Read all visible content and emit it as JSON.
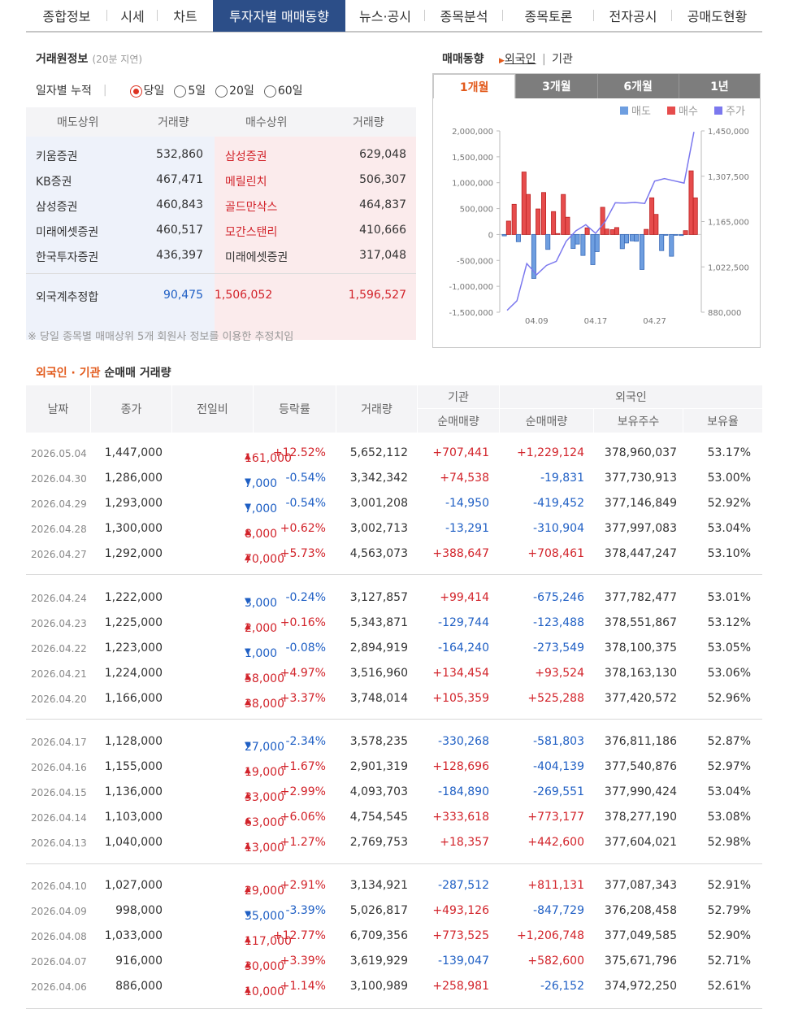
{
  "nav_tabs": [
    "종합정보",
    "시세",
    "차트",
    "투자자별 매매동향",
    "뉴스·공시",
    "종목분석",
    "종목토론",
    "전자공시",
    "공매도현황"
  ],
  "broker": {
    "title": "거래원정보",
    "subtitle": "(20분 지연)",
    "period_label": "일자별 누적",
    "periods": [
      "당일",
      "5일",
      "20일",
      "60일"
    ],
    "headers": [
      "매도상위",
      "거래량",
      "매수상위",
      "거래량"
    ],
    "rows": [
      {
        "sell": "키움증권",
        "sell_vol": "532,860",
        "buy": "삼성증권",
        "buy_vol": "629,048"
      },
      {
        "sell": "KB증권",
        "sell_vol": "467,471",
        "buy": "메릴린치",
        "buy_vol": "506,307"
      },
      {
        "sell": "삼성증권",
        "sell_vol": "460,843",
        "buy": "골드만삭스",
        "buy_vol": "464,837"
      },
      {
        "sell": "미래에셋증권",
        "sell_vol": "460,517",
        "buy": "모간스탠리",
        "buy_vol": "410,666"
      },
      {
        "sell": "한국투자증권",
        "sell_vol": "436,397",
        "buy": "미래에셋증권",
        "buy_vol": "317,048"
      }
    ],
    "foreign_label": "외국계추정합",
    "foreign_sell": "90,475",
    "foreign_mid": "1,506,052",
    "foreign_buy": "1,596,527",
    "note": "※ 당일 종목별 매매상위 5개 회원사 정보를 이용한 추정치임"
  },
  "trend": {
    "title": "매매동향",
    "opt_foreign": "외국인",
    "opt_sep": "|",
    "opt_inst": "기관",
    "periods": [
      "1개월",
      "3개월",
      "6개월",
      "1년"
    ],
    "legend": [
      "매도",
      "매수",
      "주가"
    ]
  },
  "chart_data": {
    "type": "bar",
    "left_ticks": [
      "2,000,000",
      "1,500,000",
      "1,000,000",
      "500,000",
      "0",
      "-500,000",
      "-1,000,000",
      "-1,500,000"
    ],
    "right_ticks": [
      "1,450,000",
      "1,307,500",
      "1,165,000",
      "1,022,500",
      "880,000"
    ],
    "x_ticks": [
      "04.09",
      "04.17",
      "04.27"
    ],
    "ylim": [
      -1500000,
      2000000
    ],
    "price_lim": [
      880000,
      1450000
    ],
    "days": [
      "04.06",
      "04.07",
      "04.08",
      "04.09",
      "04.10",
      "04.13",
      "04.14",
      "04.15",
      "04.16",
      "04.17",
      "04.20",
      "04.21",
      "04.22",
      "04.23",
      "04.24",
      "04.27",
      "04.28",
      "04.29",
      "04.30",
      "05.04"
    ],
    "foreign": [
      -26152,
      582600,
      1206748,
      -847729,
      811131,
      442600,
      773177,
      -269551,
      -404139,
      -581803,
      525288,
      93524,
      -273549,
      -123488,
      -675246,
      708461,
      -310904,
      -419452,
      -19831,
      1229124
    ],
    "inst": [
      258981,
      -139047,
      773525,
      493126,
      -287512,
      18357,
      333618,
      -184890,
      128696,
      -330268,
      105359,
      134454,
      -164240,
      -129744,
      99414,
      388647,
      -13291,
      -14950,
      74538,
      707441
    ],
    "price": [
      886000,
      916000,
      1033000,
      998000,
      1027000,
      1040000,
      1103000,
      1136000,
      1155000,
      1128000,
      1166000,
      1224000,
      1223000,
      1225000,
      1222000,
      1292000,
      1300000,
      1293000,
      1286000,
      1447000
    ],
    "colors": {
      "sell": "#6e9ee0",
      "buy": "#e64c4c",
      "price": "#7b78ee"
    }
  },
  "net": {
    "title_a": "외국인 · 기관",
    "title_b": "순매매 거래량",
    "headers": {
      "date": "날짜",
      "close": "종가",
      "change": "전일비",
      "rate": "등락률",
      "volume": "거래량",
      "inst": "기관",
      "foreign": "외국인",
      "inst_net": "순매매량",
      "for_net": "순매매량",
      "holding": "보유주수",
      "ratio": "보유율"
    },
    "rows": [
      [
        "2026.05.04",
        "1,447,000",
        "up",
        "161,000",
        "+12.52%",
        "5,652,112",
        "+707,441",
        "+1,229,124",
        "378,960,037",
        "53.17%"
      ],
      [
        "2026.04.30",
        "1,286,000",
        "dn",
        "7,000",
        "-0.54%",
        "3,342,342",
        "+74,538",
        "-19,831",
        "377,730,913",
        "53.00%"
      ],
      [
        "2026.04.29",
        "1,293,000",
        "dn",
        "7,000",
        "-0.54%",
        "3,001,208",
        "-14,950",
        "-419,452",
        "377,146,849",
        "52.92%"
      ],
      [
        "2026.04.28",
        "1,300,000",
        "up",
        "8,000",
        "+0.62%",
        "3,002,713",
        "-13,291",
        "-310,904",
        "377,997,083",
        "53.04%"
      ],
      [
        "2026.04.27",
        "1,292,000",
        "up",
        "70,000",
        "+5.73%",
        "4,563,073",
        "+388,647",
        "+708,461",
        "378,447,247",
        "53.10%"
      ],
      [
        "2026.04.24",
        "1,222,000",
        "dn",
        "3,000",
        "-0.24%",
        "3,127,857",
        "+99,414",
        "-675,246",
        "377,782,477",
        "53.01%"
      ],
      [
        "2026.04.23",
        "1,225,000",
        "up",
        "2,000",
        "+0.16%",
        "5,343,871",
        "-129,744",
        "-123,488",
        "378,551,867",
        "53.12%"
      ],
      [
        "2026.04.22",
        "1,223,000",
        "dn",
        "1,000",
        "-0.08%",
        "2,894,919",
        "-164,240",
        "-273,549",
        "378,100,375",
        "53.05%"
      ],
      [
        "2026.04.21",
        "1,224,000",
        "up",
        "58,000",
        "+4.97%",
        "3,516,960",
        "+134,454",
        "+93,524",
        "378,163,130",
        "53.06%"
      ],
      [
        "2026.04.20",
        "1,166,000",
        "up",
        "38,000",
        "+3.37%",
        "3,748,014",
        "+105,359",
        "+525,288",
        "377,420,572",
        "52.96%"
      ],
      [
        "2026.04.17",
        "1,128,000",
        "dn",
        "27,000",
        "-2.34%",
        "3,578,235",
        "-330,268",
        "-581,803",
        "376,811,186",
        "52.87%"
      ],
      [
        "2026.04.16",
        "1,155,000",
        "up",
        "19,000",
        "+1.67%",
        "2,901,319",
        "+128,696",
        "-404,139",
        "377,540,876",
        "52.97%"
      ],
      [
        "2026.04.15",
        "1,136,000",
        "up",
        "33,000",
        "+2.99%",
        "4,093,703",
        "-184,890",
        "-269,551",
        "377,990,424",
        "53.04%"
      ],
      [
        "2026.04.14",
        "1,103,000",
        "up",
        "63,000",
        "+6.06%",
        "4,754,545",
        "+333,618",
        "+773,177",
        "378,277,190",
        "53.08%"
      ],
      [
        "2026.04.13",
        "1,040,000",
        "up",
        "13,000",
        "+1.27%",
        "2,769,753",
        "+18,357",
        "+442,600",
        "377,604,021",
        "52.98%"
      ],
      [
        "2026.04.10",
        "1,027,000",
        "up",
        "29,000",
        "+2.91%",
        "3,134,921",
        "-287,512",
        "+811,131",
        "377,087,343",
        "52.91%"
      ],
      [
        "2026.04.09",
        "998,000",
        "dn",
        "35,000",
        "-3.39%",
        "5,026,817",
        "+493,126",
        "-847,729",
        "376,208,458",
        "52.79%"
      ],
      [
        "2026.04.08",
        "1,033,000",
        "up",
        "117,000",
        "+12.77%",
        "6,709,356",
        "+773,525",
        "+1,206,748",
        "377,049,585",
        "52.90%"
      ],
      [
        "2026.04.07",
        "916,000",
        "up",
        "30,000",
        "+3.39%",
        "3,619,929",
        "-139,047",
        "+582,600",
        "375,671,796",
        "52.71%"
      ],
      [
        "2026.04.06",
        "886,000",
        "up",
        "10,000",
        "+1.14%",
        "3,100,989",
        "+258,981",
        "-26,152",
        "374,972,250",
        "52.61%"
      ]
    ]
  }
}
